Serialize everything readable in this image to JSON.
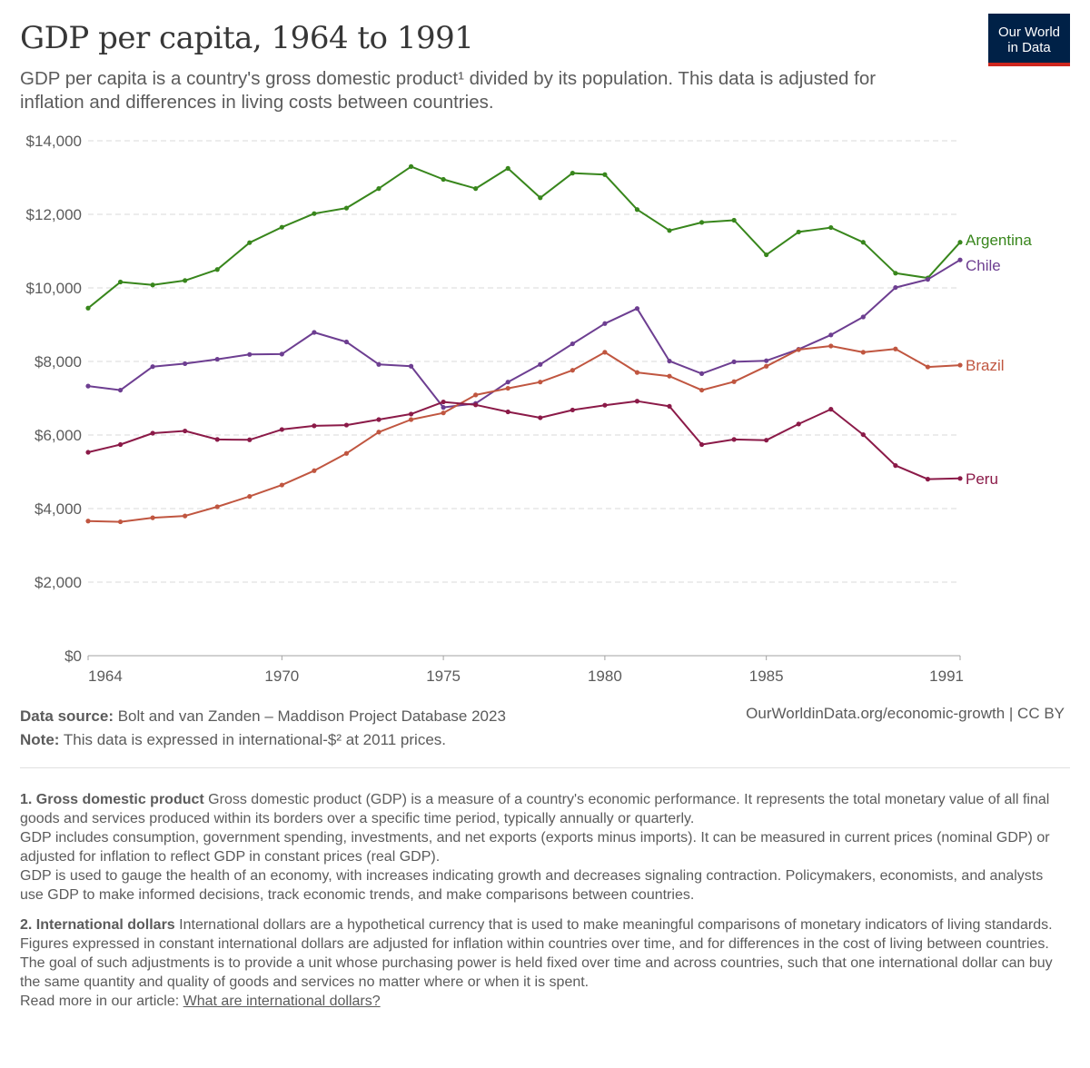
{
  "header": {
    "title": "GDP per capita, 1964 to 1991",
    "subtitle": "GDP per capita is a country's gross domestic product¹ divided by its population. This data is adjusted for inflation and differences in living costs between countries.",
    "logo_line1": "Our World",
    "logo_line2": "in Data"
  },
  "chart_data": {
    "type": "line",
    "title": "GDP per capita, 1964 to 1991",
    "ylim": [
      0,
      14000
    ],
    "xlim": [
      1964,
      1991
    ],
    "y_ticks": [
      "$0",
      "$2,000",
      "$4,000",
      "$6,000",
      "$8,000",
      "$10,000",
      "$12,000",
      "$14,000"
    ],
    "y_tick_values": [
      0,
      2000,
      4000,
      6000,
      8000,
      10000,
      12000,
      14000
    ],
    "x_ticks": [
      "1964",
      "1970",
      "1975",
      "1980",
      "1985",
      "1991"
    ],
    "x_tick_values": [
      1964,
      1970,
      1975,
      1980,
      1985,
      1991
    ],
    "grid": "horizontal dashed",
    "x": [
      1964,
      1965,
      1966,
      1967,
      1968,
      1969,
      1970,
      1971,
      1972,
      1973,
      1974,
      1975,
      1976,
      1977,
      1978,
      1979,
      1980,
      1981,
      1982,
      1983,
      1984,
      1985,
      1986,
      1987,
      1988,
      1989,
      1990,
      1991
    ],
    "series": [
      {
        "name": "Argentina",
        "color": "#2c8465",
        "values": [
          9450,
          10160,
          10080,
          10200,
          10500,
          11230,
          11650,
          12020,
          12170,
          12700,
          13300,
          12950,
          12700,
          13250,
          12450,
          13120,
          13080,
          12130,
          11560,
          11780,
          11840,
          10900,
          11520,
          11640,
          11240,
          10400,
          10270,
          11240
        ]
      },
      {
        "name": "Chile",
        "color": "#6d3e91",
        "values": [
          7330,
          7220,
          7860,
          7940,
          8060,
          8190,
          8200,
          8790,
          8530,
          7920,
          7870,
          6750,
          6860,
          7440,
          7920,
          8480,
          9030,
          9440,
          8010,
          7670,
          7990,
          8020,
          8330,
          8720,
          9210,
          10010,
          10230,
          10760
        ]
      },
      {
        "name": "Brazil",
        "color": "#c15065",
        "values": [
          3660,
          3640,
          3750,
          3800,
          4050,
          4330,
          4640,
          5030,
          5500,
          6080,
          6420,
          6600,
          7090,
          7270,
          7440,
          7760,
          8250,
          7700,
          7600,
          7220,
          7450,
          7870,
          8320,
          8420,
          8250,
          8340,
          7850,
          7900
        ]
      },
      {
        "name": "Peru",
        "color": "#883039",
        "values": [
          5530,
          5740,
          6050,
          6110,
          5880,
          5870,
          6150,
          6250,
          6270,
          6420,
          6570,
          6900,
          6820,
          6630,
          6470,
          6680,
          6810,
          6920,
          6780,
          5740,
          5880,
          5860,
          6300,
          6700,
          6010,
          5170,
          4800,
          4820
        ]
      }
    ]
  },
  "footer": {
    "source_label": "Data source:",
    "source_text": "Bolt and van Zanden – Maddison Project Database 2023",
    "note_label": "Note:",
    "note_text": "This data is expressed in international-$² at 2011 prices.",
    "right_text": "OurWorldinData.org/economic-growth | CC BY"
  },
  "notes": {
    "n1_title": "1. Gross domestic product",
    "n1_p1": "Gross domestic product (GDP) is a measure of a country's economic performance. It represents the total monetary value of all final goods and services produced within its borders over a specific time period, typically annually or quarterly.",
    "n1_p2": "GDP includes consumption, government spending, investments, and net exports (exports minus imports). It can be measured in current prices (nominal GDP) or adjusted for inflation to reflect GDP in constant prices (real GDP).",
    "n1_p3": "GDP is used to gauge the health of an economy, with increases indicating growth and decreases signaling contraction. Policymakers, economists, and analysts use GDP to make informed decisions, track economic trends, and make comparisons between countries.",
    "n2_title": "2. International dollars",
    "n2_p1": "International dollars are a hypothetical currency that is used to make meaningful comparisons of monetary indicators of living standards.",
    "n2_p2": "Figures expressed in constant international dollars are adjusted for inflation within countries over time, and for differences in the cost of living between countries.",
    "n2_p3": "The goal of such adjustments is to provide a unit whose purchasing power is held fixed over time and across countries, such that one international dollar can buy the same quantity and quality of goods and services no matter where or when it is spent.",
    "read_more_prefix": "Read more in our article:",
    "read_more_link": "What are international dollars?"
  }
}
